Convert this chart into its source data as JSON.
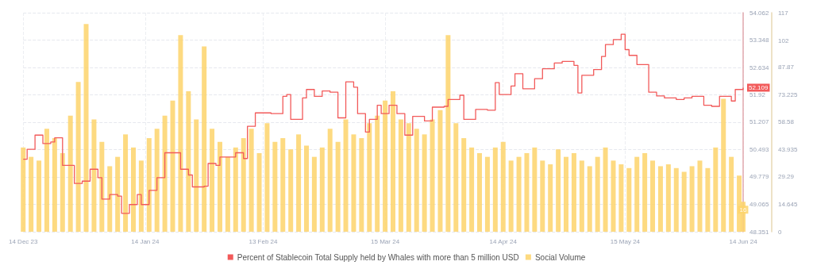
{
  "chart_data": {
    "type": "bar",
    "xlim": [
      "2023-12-14",
      "2024-06-14"
    ],
    "xticks": [
      {
        "value": "2023-12-14",
        "label": "14 Dec 23"
      },
      {
        "value": "2024-01-14",
        "label": "14 Jan 24"
      },
      {
        "value": "2024-02-13",
        "label": "13 Feb 24"
      },
      {
        "value": "2024-03-15",
        "label": "15 Mar 24"
      },
      {
        "value": "2024-04-14",
        "label": "14 Apr 24"
      },
      {
        "value": "2024-05-15",
        "label": "15 May 24"
      },
      {
        "value": "2024-06-14",
        "label": "14 Jun 24"
      }
    ],
    "ylim": [
      48.351,
      54.062
    ],
    "yticks": [
      48.351,
      49.065,
      49.779,
      50.493,
      51.207,
      51.92,
      52.634,
      53.348,
      {
        "value": 54.062,
        "label": "54.062"
      }
    ],
    "y2lim": [
      0,
      117
    ],
    "y2ticks": [
      0,
      14.645,
      29.29,
      43.935,
      58.58,
      73.225,
      87.87,
      102,
      117
    ],
    "grid": true,
    "legend": "bottom",
    "marker": "none",
    "series": [
      {
        "name": "Percent of Stablecoin Total Supply held by Whales with more than 5 million USD",
        "type": "step",
        "color": "#f25a5a",
        "x": [
          "2023-12-14",
          "2023-12-15",
          "2023-12-17",
          "2023-12-19",
          "2023-12-21",
          "2023-12-22",
          "2023-12-24",
          "2023-12-27",
          "2023-12-29",
          "2023-12-31",
          "2024-01-02",
          "2024-01-03",
          "2024-01-05",
          "2024-01-07",
          "2024-01-08",
          "2024-01-10",
          "2024-01-12",
          "2024-01-13",
          "2024-01-15",
          "2024-01-17",
          "2024-01-19",
          "2024-01-21",
          "2024-01-23",
          "2024-01-25",
          "2024-01-26",
          "2024-01-29",
          "2024-01-30",
          "2024-02-01",
          "2024-02-02",
          "2024-02-04",
          "2024-02-06",
          "2024-02-08",
          "2024-02-09",
          "2024-02-11",
          "2024-02-15",
          "2024-02-18",
          "2024-02-19",
          "2024-02-20",
          "2024-02-23",
          "2024-02-24",
          "2024-02-26",
          "2024-02-28",
          "2024-03-01",
          "2024-03-03",
          "2024-03-05",
          "2024-03-07",
          "2024-03-08",
          "2024-03-10",
          "2024-03-11",
          "2024-03-13",
          "2024-03-14",
          "2024-03-16",
          "2024-03-18",
          "2024-03-20",
          "2024-03-22",
          "2024-03-25",
          "2024-03-27",
          "2024-03-30",
          "2024-03-31",
          "2024-04-03",
          "2024-04-04",
          "2024-04-07",
          "2024-04-10",
          "2024-04-12",
          "2024-04-13",
          "2024-04-16",
          "2024-04-17",
          "2024-04-19",
          "2024-04-22",
          "2024-04-24",
          "2024-04-27",
          "2024-04-29",
          "2024-05-02",
          "2024-05-03",
          "2024-05-04",
          "2024-05-06",
          "2024-05-07",
          "2024-05-09",
          "2024-05-10",
          "2024-05-12",
          "2024-05-14",
          "2024-05-15",
          "2024-05-16",
          "2024-05-18",
          "2024-05-20",
          "2024-05-21",
          "2024-05-23",
          "2024-05-25",
          "2024-05-28",
          "2024-05-30",
          "2024-06-01",
          "2024-06-04",
          "2024-06-06",
          "2024-06-08",
          "2024-06-11",
          "2024-06-12",
          "2024-06-14"
        ],
        "values": [
          50.24,
          50.5,
          50.87,
          50.65,
          50.69,
          50.8,
          50.08,
          49.61,
          49.67,
          49.98,
          49.76,
          49.2,
          49.32,
          49.28,
          48.83,
          49.06,
          49.32,
          49.06,
          49.43,
          49.76,
          50.41,
          50.41,
          49.98,
          49.83,
          49.52,
          49.54,
          50.13,
          50.08,
          50.3,
          50.3,
          50.41,
          50.26,
          51.1,
          51.45,
          51.43,
          51.88,
          51.93,
          51.28,
          51.84,
          52.06,
          51.88,
          52.02,
          51.99,
          51.32,
          52.26,
          52.12,
          51.43,
          50.95,
          51.28,
          51.65,
          51.43,
          51.65,
          51.43,
          50.87,
          51.36,
          51.24,
          51.6,
          51.62,
          51.8,
          51.91,
          51.28,
          51.54,
          51.52,
          52.24,
          51.93,
          52.15,
          52.47,
          52.08,
          52.34,
          52.6,
          52.75,
          52.79,
          52.69,
          51.97,
          52.43,
          52.43,
          52.58,
          52.92,
          53.23,
          53.36,
          53.5,
          53.1,
          52.95,
          52.71,
          52.71,
          51.99,
          51.89,
          51.84,
          51.8,
          51.84,
          51.88,
          51.65,
          51.62,
          51.88,
          51.76,
          52.06,
          52.109
        ],
        "value_labels": [
          null,
          null,
          null,
          null,
          null,
          null,
          null,
          null,
          null,
          null,
          null,
          null,
          null,
          null,
          null,
          null,
          null,
          null,
          null,
          null,
          null,
          null,
          null,
          null,
          null,
          null,
          null,
          null,
          null,
          null,
          null,
          null,
          null,
          null,
          null,
          null,
          null,
          null,
          null,
          null,
          null,
          null,
          null,
          null,
          null,
          null,
          null,
          null,
          null,
          null,
          null,
          null,
          null,
          null,
          null,
          null,
          null,
          null,
          null,
          null,
          null,
          null,
          null,
          null,
          null,
          null,
          null,
          null,
          null,
          null,
          null,
          null,
          null,
          null,
          null,
          null,
          null,
          null,
          null,
          null,
          null,
          null,
          null,
          null,
          null,
          null,
          null,
          null,
          null,
          null,
          null,
          null,
          null,
          null,
          null,
          null,
          "52.109"
        ]
      },
      {
        "name": "Social Volume",
        "axis": "y2",
        "color": "#fdd36b",
        "x": [
          "2023-12-14",
          "2023-12-16",
          "2023-12-18",
          "2023-12-20",
          "2023-12-22",
          "2023-12-24",
          "2023-12-26",
          "2023-12-28",
          "2023-12-30",
          "2024-01-01",
          "2024-01-03",
          "2024-01-05",
          "2024-01-07",
          "2024-01-09",
          "2024-01-11",
          "2024-01-13",
          "2024-01-15",
          "2024-01-17",
          "2024-01-19",
          "2024-01-21",
          "2024-01-23",
          "2024-01-25",
          "2024-01-27",
          "2024-01-29",
          "2024-01-31",
          "2024-02-02",
          "2024-02-04",
          "2024-02-06",
          "2024-02-08",
          "2024-02-10",
          "2024-02-12",
          "2024-02-14",
          "2024-02-16",
          "2024-02-18",
          "2024-02-20",
          "2024-02-22",
          "2024-02-24",
          "2024-02-26",
          "2024-02-28",
          "2024-03-01",
          "2024-03-03",
          "2024-03-05",
          "2024-03-07",
          "2024-03-09",
          "2024-03-11",
          "2024-03-13",
          "2024-03-15",
          "2024-03-17",
          "2024-03-19",
          "2024-03-21",
          "2024-03-23",
          "2024-03-25",
          "2024-03-27",
          "2024-03-29",
          "2024-03-31",
          "2024-04-02",
          "2024-04-04",
          "2024-04-06",
          "2024-04-08",
          "2024-04-10",
          "2024-04-12",
          "2024-04-14",
          "2024-04-16",
          "2024-04-18",
          "2024-04-20",
          "2024-04-22",
          "2024-04-24",
          "2024-04-26",
          "2024-04-28",
          "2024-04-30",
          "2024-05-02",
          "2024-05-04",
          "2024-05-06",
          "2024-05-08",
          "2024-05-10",
          "2024-05-12",
          "2024-05-14",
          "2024-05-16",
          "2024-05-18",
          "2024-05-20",
          "2024-05-22",
          "2024-05-24",
          "2024-05-26",
          "2024-05-28",
          "2024-05-30",
          "2024-06-01",
          "2024-06-03",
          "2024-06-05",
          "2024-06-07",
          "2024-06-09",
          "2024-06-11",
          "2024-06-13",
          "2024-06-14"
        ],
        "values": [
          45,
          40,
          38,
          55,
          50,
          42,
          62,
          80,
          111,
          60,
          48,
          35,
          40,
          52,
          45,
          38,
          50,
          55,
          62,
          70,
          105,
          75,
          60,
          99,
          55,
          48,
          40,
          45,
          50,
          55,
          42,
          58,
          48,
          50,
          44,
          52,
          46,
          40,
          45,
          55,
          48,
          60,
          52,
          50,
          58,
          62,
          70,
          75,
          60,
          58,
          55,
          52,
          60,
          65,
          105,
          58,
          50,
          45,
          42,
          40,
          45,
          48,
          38,
          40,
          42,
          45,
          38,
          36,
          44,
          40,
          42,
          38,
          35,
          40,
          45,
          38,
          36,
          34,
          40,
          42,
          38,
          35,
          36,
          34,
          32,
          35,
          38,
          34,
          45,
          71,
          40,
          30,
          16
        ],
        "value_labels": [
          null,
          null,
          null,
          null,
          null,
          null,
          null,
          null,
          null,
          null,
          null,
          null,
          null,
          null,
          null,
          null,
          null,
          null,
          null,
          null,
          null,
          null,
          null,
          null,
          null,
          null,
          null,
          null,
          null,
          null,
          null,
          null,
          null,
          null,
          null,
          null,
          null,
          null,
          null,
          null,
          null,
          null,
          null,
          null,
          null,
          null,
          null,
          null,
          null,
          null,
          null,
          null,
          null,
          null,
          null,
          null,
          null,
          null,
          null,
          null,
          null,
          null,
          null,
          null,
          null,
          null,
          null,
          null,
          null,
          null,
          null,
          null,
          null,
          null,
          null,
          null,
          null,
          null,
          null,
          null,
          null,
          null,
          null,
          null,
          null,
          null,
          null,
          null,
          null,
          null,
          null,
          null,
          "16"
        ]
      }
    ]
  }
}
